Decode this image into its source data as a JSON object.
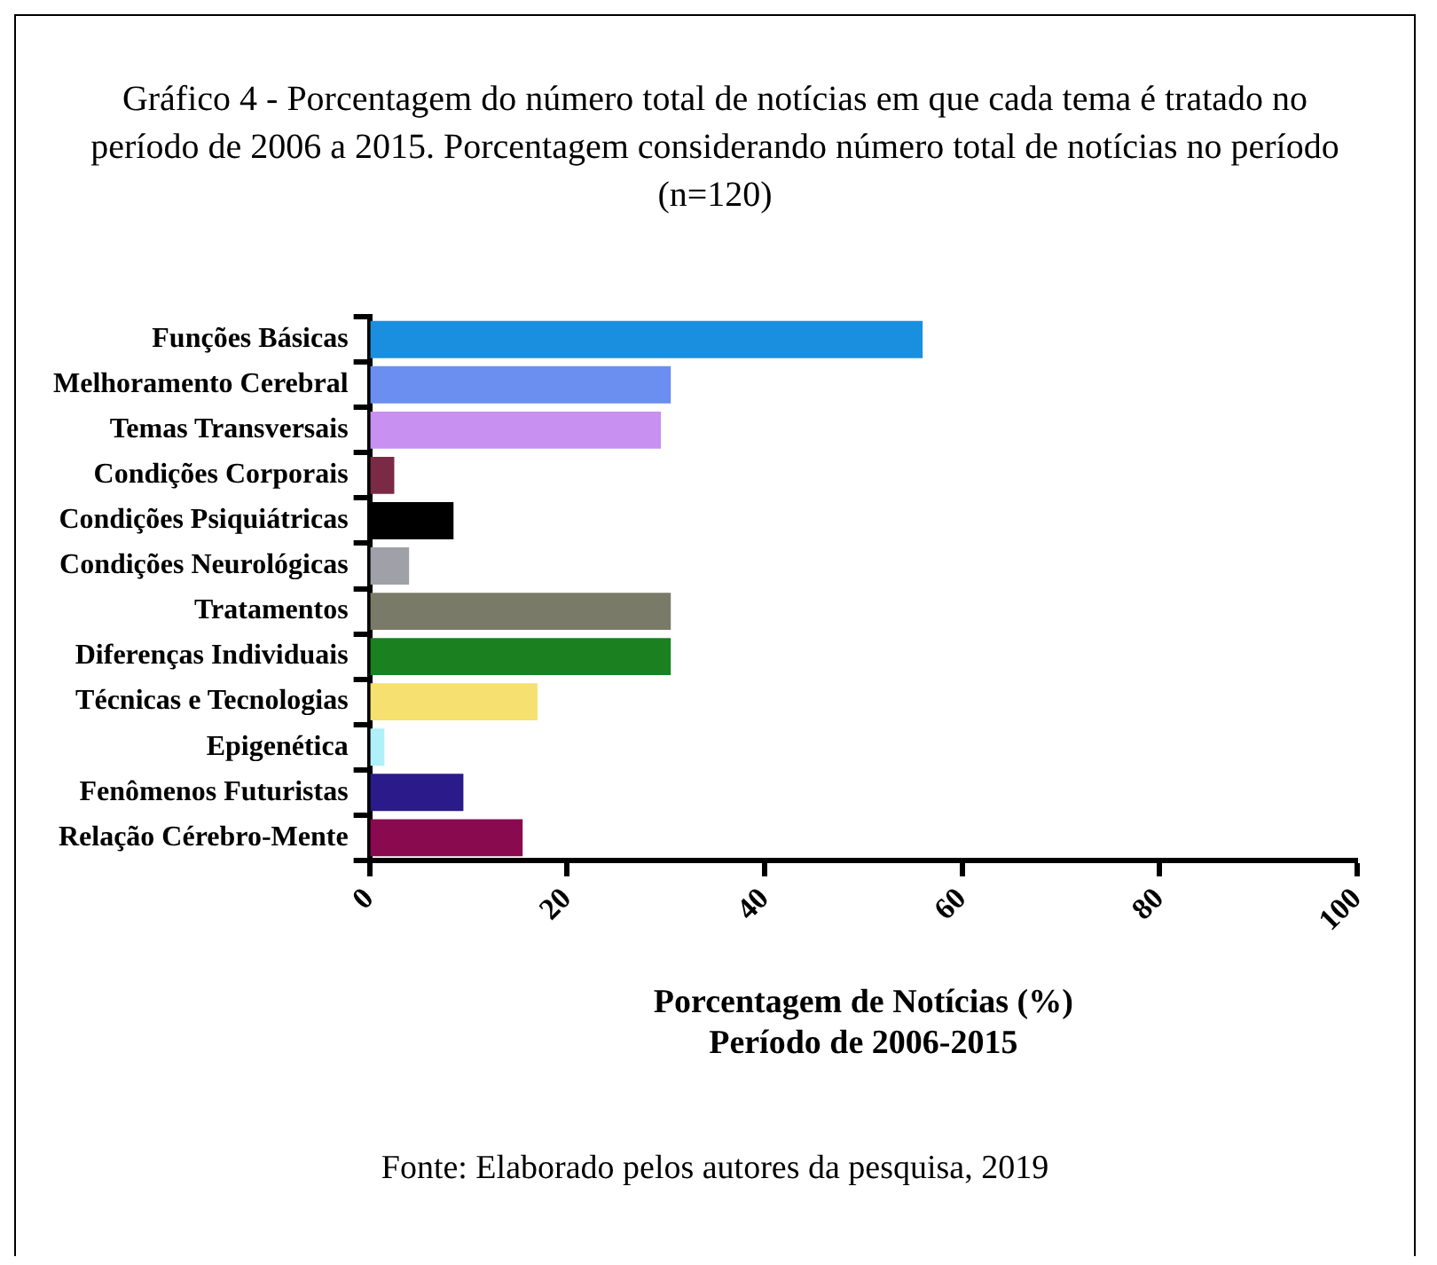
{
  "chart_data": {
    "type": "bar",
    "orientation": "horizontal",
    "title": "Gráfico 4 - Porcentagem do número total de notícias em que cada tema é tratado no período de 2006 a 2015. Porcentagem considerando número total de notícias no período (n=120)",
    "xlabel": "Porcentagem de Notícias (%)\nPeríodo de 2006-2015",
    "categories": [
      "Funções Básicas",
      "Melhoramento Cerebral",
      "Temas Transversais",
      "Condições Corporais",
      "Condições Psiquiátricas",
      "Condições Neurológicas",
      "Tratamentos",
      "Diferenças Individuais",
      "Técnicas e Tecnologias",
      "Epigenética",
      "Fenômenos Futuristas",
      "Relação Cérebro-Mente"
    ],
    "values": [
      56,
      30.5,
      29.5,
      2.5,
      8.5,
      4,
      30.5,
      30.5,
      17,
      1.5,
      9.5,
      15.5
    ],
    "colors": [
      "#1a8fe0",
      "#6a8ff0",
      "#c890f0",
      "#7a2a45",
      "#000000",
      "#a0a0a8",
      "#7a7a68",
      "#1a8020",
      "#f6e070",
      "#b0f0f8",
      "#2a1a8a",
      "#8a0a50"
    ],
    "xlim": [
      0,
      100
    ],
    "xticks": [
      0,
      20,
      40,
      60,
      80,
      100
    ],
    "grid": false,
    "legend": false,
    "annotations": [
      "Fonte: Elaborado pelos autores da pesquisa, 2019"
    ]
  }
}
